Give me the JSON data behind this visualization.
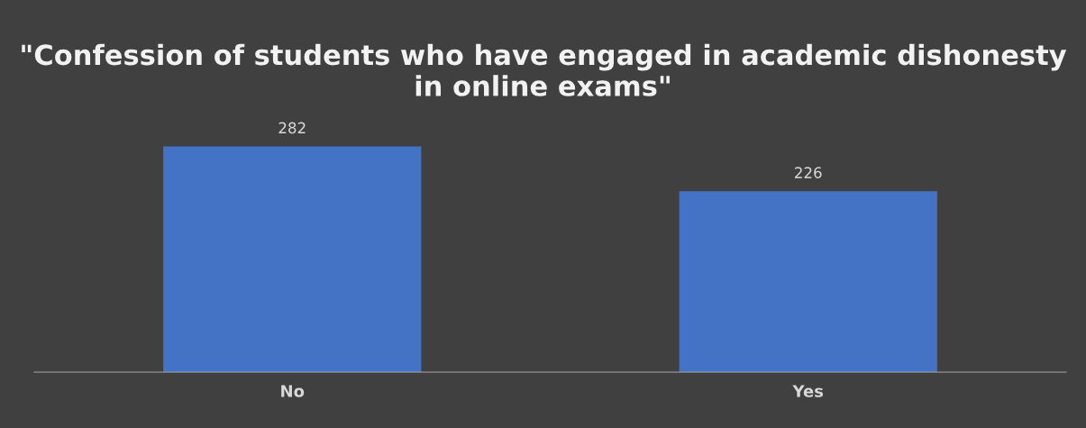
{
  "chart_data": {
    "type": "bar",
    "title": "\"Confession of students who have engaged in academic dishonesty in online exams\"",
    "categories": [
      "No",
      "Yes"
    ],
    "values": [
      282,
      226
    ],
    "color": "#4472c4",
    "data_labels": true,
    "grid": false,
    "legend": false
  }
}
